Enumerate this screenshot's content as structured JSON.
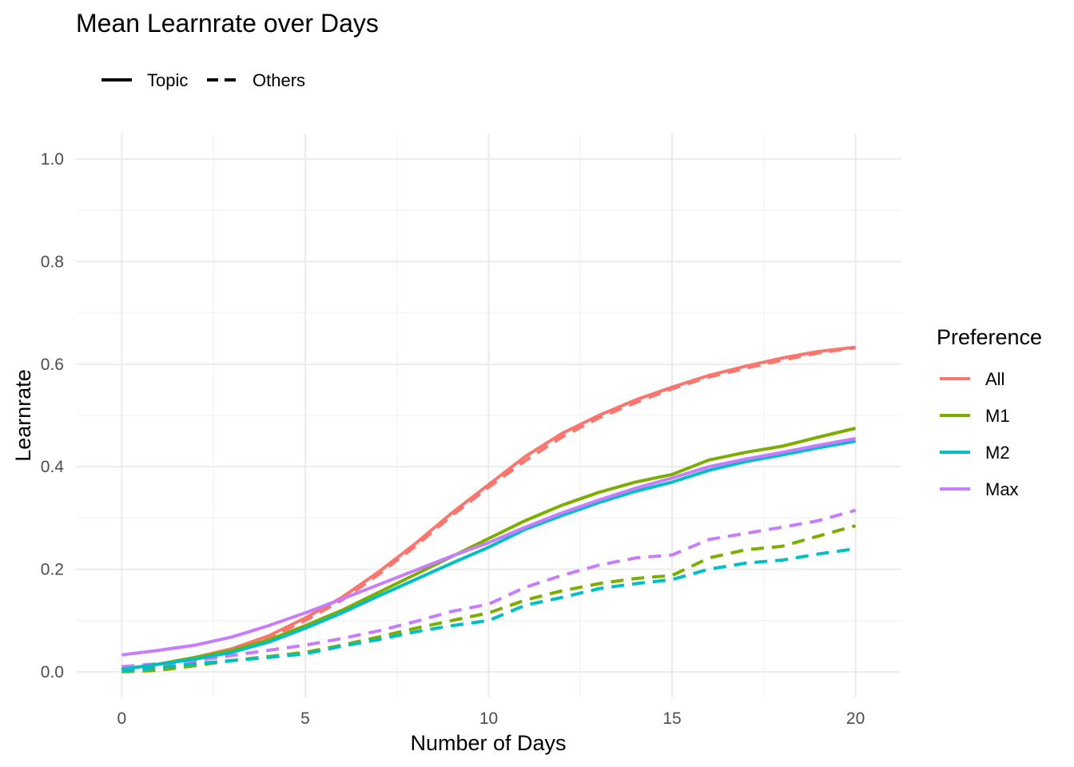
{
  "chart_data": {
    "type": "line",
    "title": "Mean Learnrate over Days",
    "xlabel": "Number of Days",
    "ylabel": "Learnrate",
    "xlim": [
      -1.25,
      21.25
    ],
    "ylim": [
      -0.05,
      1.05
    ],
    "x_ticks": [
      0,
      5,
      10,
      15,
      20
    ],
    "y_ticks": [
      0.0,
      0.2,
      0.4,
      0.6,
      0.8,
      1.0
    ],
    "x_tick_labels": [
      "0",
      "5",
      "10",
      "15",
      "20"
    ],
    "y_tick_labels": [
      "0.0",
      "0.2",
      "0.4",
      "0.6",
      "0.8",
      "1.0"
    ],
    "grid": true,
    "linetype_legend": {
      "placement": "top-left",
      "items": [
        {
          "label": "Topic",
          "dash": "solid"
        },
        {
          "label": "Others",
          "dash": "dashed"
        }
      ]
    },
    "color_legend": {
      "title": "Preference",
      "placement": "right",
      "items": [
        {
          "label": "All",
          "color": "#F8766D"
        },
        {
          "label": "M1",
          "color": "#7CAE00"
        },
        {
          "label": "M2",
          "color": "#00BFC4"
        },
        {
          "label": "Max",
          "color": "#C77CFF"
        }
      ]
    },
    "x": [
      0,
      1,
      2,
      3,
      4,
      5,
      6,
      7,
      8,
      9,
      10,
      11,
      12,
      13,
      14,
      15,
      16,
      17,
      18,
      19,
      20
    ],
    "series": [
      {
        "group": "All",
        "linetype": "Topic",
        "color": "#F8766D",
        "values": [
          0.005,
          0.015,
          0.028,
          0.045,
          0.07,
          0.105,
          0.145,
          0.195,
          0.25,
          0.31,
          0.365,
          0.42,
          0.465,
          0.5,
          0.53,
          0.555,
          0.578,
          0.596,
          0.612,
          0.625,
          0.633
        ]
      },
      {
        "group": "All",
        "linetype": "Others",
        "color": "#F8766D",
        "values": [
          0.003,
          0.012,
          0.026,
          0.042,
          0.066,
          0.1,
          0.14,
          0.19,
          0.245,
          0.305,
          0.36,
          0.412,
          0.458,
          0.495,
          0.525,
          0.552,
          0.575,
          0.592,
          0.608,
          0.622,
          0.632
        ]
      },
      {
        "group": "M1",
        "linetype": "Topic",
        "color": "#7CAE00",
        "values": [
          0.005,
          0.015,
          0.028,
          0.042,
          0.062,
          0.09,
          0.12,
          0.155,
          0.19,
          0.225,
          0.26,
          0.295,
          0.325,
          0.35,
          0.37,
          0.385,
          0.413,
          0.428,
          0.44,
          0.458,
          0.475
        ]
      },
      {
        "group": "M1",
        "linetype": "Others",
        "color": "#7CAE00",
        "values": [
          0.0,
          0.003,
          0.012,
          0.022,
          0.03,
          0.038,
          0.052,
          0.068,
          0.085,
          0.1,
          0.115,
          0.14,
          0.158,
          0.172,
          0.182,
          0.188,
          0.222,
          0.238,
          0.245,
          0.265,
          0.285
        ]
      },
      {
        "group": "M2",
        "linetype": "Topic",
        "color": "#00BFC4",
        "values": [
          0.005,
          0.015,
          0.025,
          0.038,
          0.058,
          0.085,
          0.115,
          0.148,
          0.18,
          0.212,
          0.243,
          0.278,
          0.305,
          0.33,
          0.352,
          0.37,
          0.393,
          0.41,
          0.423,
          0.437,
          0.45
        ]
      },
      {
        "group": "M2",
        "linetype": "Others",
        "color": "#00BFC4",
        "values": [
          0.002,
          0.008,
          0.016,
          0.022,
          0.028,
          0.035,
          0.05,
          0.063,
          0.078,
          0.09,
          0.1,
          0.13,
          0.145,
          0.162,
          0.172,
          0.18,
          0.2,
          0.212,
          0.218,
          0.23,
          0.24
        ]
      },
      {
        "group": "Max",
        "linetype": "Topic",
        "color": "#C77CFF",
        "values": [
          0.033,
          0.042,
          0.052,
          0.068,
          0.09,
          0.115,
          0.142,
          0.17,
          0.198,
          0.226,
          0.252,
          0.282,
          0.31,
          0.335,
          0.358,
          0.378,
          0.4,
          0.415,
          0.428,
          0.442,
          0.455
        ]
      },
      {
        "group": "Max",
        "linetype": "Others",
        "color": "#C77CFF",
        "values": [
          0.01,
          0.016,
          0.022,
          0.032,
          0.042,
          0.052,
          0.065,
          0.08,
          0.098,
          0.118,
          0.132,
          0.165,
          0.188,
          0.208,
          0.222,
          0.228,
          0.258,
          0.27,
          0.282,
          0.295,
          0.315
        ]
      }
    ]
  }
}
